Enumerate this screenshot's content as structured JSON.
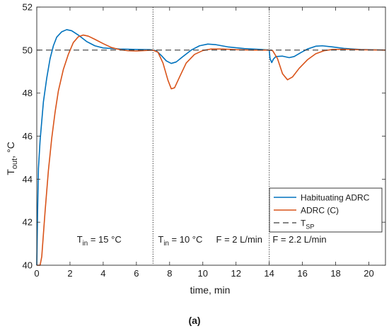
{
  "chart_data": {
    "type": "line",
    "xlabel": "time, min",
    "ylabel": {
      "main": "T",
      "sub": "out",
      "suffix": ", °C"
    },
    "xlim": [
      0,
      21
    ],
    "ylim": [
      40,
      52
    ],
    "xticks": [
      0,
      2,
      4,
      6,
      8,
      10,
      12,
      14,
      16,
      18,
      20
    ],
    "yticks": [
      40,
      42,
      44,
      46,
      48,
      50,
      52
    ],
    "grid": false,
    "legend_position": "bottom-right",
    "caption": "(a)",
    "event_lines": [
      7,
      14
    ],
    "annotations": [
      {
        "x": 5.1,
        "y": 41.05,
        "main": "T",
        "sub": "in",
        "rest": " = 15 °C",
        "anchor": "end"
      },
      {
        "x": 7.3,
        "y": 41.05,
        "main": "T",
        "sub": "in",
        "rest": " = 10 °C",
        "anchor": "start"
      },
      {
        "x": 10.8,
        "y": 41.05,
        "main": "F = 2 L/min",
        "sub": "",
        "rest": "",
        "anchor": "start"
      },
      {
        "x": 14.2,
        "y": 41.05,
        "main": "F = 2.2 L/min",
        "sub": "",
        "rest": "",
        "anchor": "start"
      }
    ],
    "series": [
      {
        "name": "Habituating ADRC",
        "color": "#0072BD",
        "style": "solid",
        "points": [
          [
            0,
            40
          ],
          [
            0.05,
            42.5
          ],
          [
            0.1,
            44.5
          ],
          [
            0.2,
            45.8
          ],
          [
            0.4,
            47.6
          ],
          [
            0.6,
            48.7
          ],
          [
            0.8,
            49.6
          ],
          [
            1.0,
            50.2
          ],
          [
            1.2,
            50.6
          ],
          [
            1.5,
            50.85
          ],
          [
            1.8,
            50.95
          ],
          [
            2.1,
            50.9
          ],
          [
            2.5,
            50.7
          ],
          [
            3.0,
            50.4
          ],
          [
            3.5,
            50.2
          ],
          [
            4.0,
            50.1
          ],
          [
            5.0,
            50.05
          ],
          [
            6.0,
            50.03
          ],
          [
            6.8,
            50.02
          ],
          [
            7.0,
            50.0
          ],
          [
            7.2,
            49.97
          ],
          [
            7.5,
            49.75
          ],
          [
            7.8,
            49.5
          ],
          [
            8.1,
            49.38
          ],
          [
            8.4,
            49.45
          ],
          [
            8.8,
            49.7
          ],
          [
            9.3,
            50.0
          ],
          [
            9.8,
            50.2
          ],
          [
            10.3,
            50.28
          ],
          [
            10.8,
            50.25
          ],
          [
            11.5,
            50.15
          ],
          [
            12.5,
            50.07
          ],
          [
            13.5,
            50.03
          ],
          [
            14.0,
            50.0
          ],
          [
            14.05,
            49.6
          ],
          [
            14.15,
            49.42
          ],
          [
            14.25,
            49.58
          ],
          [
            14.4,
            49.7
          ],
          [
            14.8,
            49.72
          ],
          [
            15.2,
            49.65
          ],
          [
            15.5,
            49.7
          ],
          [
            15.9,
            49.88
          ],
          [
            16.3,
            50.05
          ],
          [
            16.8,
            50.18
          ],
          [
            17.2,
            50.2
          ],
          [
            17.8,
            50.15
          ],
          [
            18.5,
            50.08
          ],
          [
            19.5,
            50.03
          ],
          [
            21,
            50.0
          ]
        ]
      },
      {
        "name": "ADRC (C)",
        "color": "#D95319",
        "style": "solid",
        "points": [
          [
            0,
            40
          ],
          [
            0.2,
            40.0
          ],
          [
            0.3,
            40.4
          ],
          [
            0.5,
            42.5
          ],
          [
            0.7,
            44.4
          ],
          [
            0.9,
            45.9
          ],
          [
            1.1,
            47.1
          ],
          [
            1.3,
            48.1
          ],
          [
            1.6,
            49.1
          ],
          [
            1.9,
            49.8
          ],
          [
            2.2,
            50.35
          ],
          [
            2.5,
            50.62
          ],
          [
            2.8,
            50.7
          ],
          [
            3.1,
            50.65
          ],
          [
            3.5,
            50.5
          ],
          [
            4.0,
            50.3
          ],
          [
            4.5,
            50.12
          ],
          [
            5.0,
            50.02
          ],
          [
            5.5,
            49.97
          ],
          [
            6.0,
            49.96
          ],
          [
            6.5,
            49.98
          ],
          [
            7.0,
            50.0
          ],
          [
            7.3,
            49.9
          ],
          [
            7.6,
            49.4
          ],
          [
            7.9,
            48.6
          ],
          [
            8.1,
            48.2
          ],
          [
            8.3,
            48.25
          ],
          [
            8.6,
            48.75
          ],
          [
            9.0,
            49.4
          ],
          [
            9.5,
            49.8
          ],
          [
            10.0,
            49.98
          ],
          [
            10.5,
            50.05
          ],
          [
            11.2,
            50.05
          ],
          [
            12,
            50.02
          ],
          [
            13,
            50.0
          ],
          [
            14.0,
            50.0
          ],
          [
            14.2,
            49.98
          ],
          [
            14.5,
            49.6
          ],
          [
            14.8,
            48.9
          ],
          [
            15.1,
            48.62
          ],
          [
            15.4,
            48.75
          ],
          [
            15.8,
            49.15
          ],
          [
            16.3,
            49.55
          ],
          [
            16.8,
            49.83
          ],
          [
            17.3,
            49.97
          ],
          [
            17.8,
            50.03
          ],
          [
            18.5,
            50.04
          ],
          [
            19.3,
            50.02
          ],
          [
            21,
            50.0
          ]
        ]
      },
      {
        "name": "T",
        "name_sub": "SP",
        "color": "#3a3a3a",
        "style": "dashed",
        "points": [
          [
            0,
            50
          ],
          [
            21,
            50
          ]
        ]
      }
    ]
  }
}
